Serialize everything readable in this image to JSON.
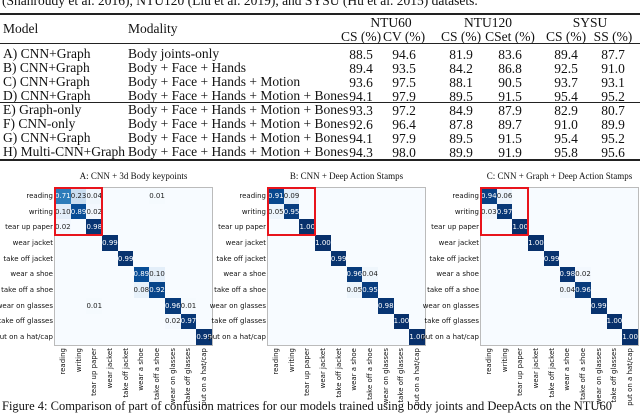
{
  "top_text": "(Shahroudy et al. 2016), NTU120 (Liu et al. 2019), and SYSU (Hu et al. 2015) datasets.",
  "table": {
    "headers": {
      "model": "Model",
      "modality": "Modality",
      "groups": [
        "NTU60",
        "NTU120",
        "SYSU"
      ],
      "subcols": [
        "CS (%)",
        "CV (%)",
        "CS (%)",
        "CSet (%)",
        "CS (%)",
        "SS (%)"
      ]
    },
    "rows": [
      {
        "model": "A) CNN+Graph",
        "modality": "Body joints-only",
        "values": [
          "88.5",
          "94.6",
          "81.9",
          "83.6",
          "89.4",
          "87.7"
        ]
      },
      {
        "model": "B) CNN+Graph",
        "modality": "Body + Face + Hands",
        "values": [
          "89.4",
          "93.5",
          "84.2",
          "86.8",
          "92.5",
          "91.0"
        ]
      },
      {
        "model": "C) CNN+Graph",
        "modality": "Body + Face + Hands + Motion",
        "values": [
          "93.6",
          "97.5",
          "88.1",
          "90.5",
          "93.7",
          "93.1"
        ]
      },
      {
        "model": "D) CNN+Graph",
        "modality": "Body + Face + Hands + Motion + Bones",
        "values": [
          "94.1",
          "97.9",
          "89.5",
          "91.5",
          "95.4",
          "95.2"
        ]
      },
      {
        "model": "E) Graph-only",
        "modality": "Body + Face + Hands + Motion + Bones",
        "values": [
          "93.3",
          "97.2",
          "84.9",
          "87.9",
          "82.9",
          "80.7"
        ]
      },
      {
        "model": "F) CNN-only",
        "modality": "Body + Face + Hands + Motion + Bones",
        "values": [
          "92.6",
          "96.4",
          "87.8",
          "89.7",
          "91.0",
          "89.9"
        ]
      },
      {
        "model": "G) CNN+Graph",
        "modality": "Body + Face + Hands + Motion + Bones",
        "values": [
          "94.1",
          "97.9",
          "89.5",
          "91.5",
          "95.4",
          "95.2"
        ]
      },
      {
        "model": "H) Multi-CNN+Graph",
        "modality": "Body + Face + Hands + Motion + Bones",
        "values": [
          "94.3",
          "98.0",
          "89.9",
          "91.9",
          "95.8",
          "95.6"
        ]
      }
    ]
  },
  "chart_data": [
    {
      "type": "heatmap",
      "title": "A: CNN + 3d Body keypoints",
      "colormap": "Blues",
      "highlight_color": "#e8141c",
      "highlight": "top-left 3x3",
      "labels": [
        "reading",
        "writing",
        "tear up paper",
        "wear jacket",
        "take off jacket",
        "wear a shoe",
        "take off a shoe",
        "wear on glasses",
        "take off glasses",
        "put on a hat/cap"
      ],
      "matrix": [
        [
          0.71,
          0.23,
          0.04,
          0,
          0,
          0,
          0.01,
          0,
          0,
          0
        ],
        [
          0.1,
          0.89,
          0.02,
          0,
          0,
          0,
          0,
          0,
          0,
          0
        ],
        [
          0.02,
          0,
          0.98,
          0,
          0,
          0,
          0,
          0,
          0,
          0
        ],
        [
          0,
          0,
          0,
          0.99,
          0,
          0,
          0,
          0,
          0,
          0
        ],
        [
          0,
          0,
          0,
          0,
          0.99,
          0,
          0,
          0,
          0,
          0
        ],
        [
          0,
          0,
          0,
          0,
          0,
          0.89,
          0.1,
          0,
          0,
          0
        ],
        [
          0,
          0,
          0,
          0,
          0,
          0.08,
          0.92,
          0,
          0,
          0
        ],
        [
          0,
          0,
          0.01,
          0,
          0,
          0,
          0,
          0.96,
          0.01,
          0
        ],
        [
          0,
          0,
          0,
          0,
          0,
          0,
          0,
          0.02,
          0.97,
          0
        ],
        [
          0,
          0,
          0,
          0,
          0,
          0,
          0,
          0,
          0,
          0.99
        ]
      ]
    },
    {
      "type": "heatmap",
      "title": "B: CNN + Deep Action Stamps",
      "colormap": "Blues",
      "highlight_color": "#e8141c",
      "highlight": "top-left 3x3",
      "labels": [
        "reading",
        "writing",
        "tear up paper",
        "wear jacket",
        "take off jacket",
        "wear a shoe",
        "take off a shoe",
        "wear on glasses",
        "take off glasses",
        "put on a hat/cap"
      ],
      "matrix": [
        [
          0.91,
          0.09,
          0,
          0,
          0,
          0,
          0,
          0,
          0,
          0
        ],
        [
          0.05,
          0.95,
          0,
          0,
          0,
          0,
          0,
          0,
          0,
          0
        ],
        [
          0,
          0,
          1.0,
          0,
          0,
          0,
          0,
          0,
          0,
          0
        ],
        [
          0,
          0,
          0,
          1.0,
          0,
          0,
          0,
          0,
          0,
          0
        ],
        [
          0,
          0,
          0,
          0,
          0.99,
          0,
          0,
          0,
          0,
          0
        ],
        [
          0,
          0,
          0,
          0,
          0,
          0.96,
          0.04,
          0,
          0,
          0
        ],
        [
          0,
          0,
          0,
          0,
          0,
          0.05,
          0.95,
          0,
          0,
          0
        ],
        [
          0,
          0,
          0,
          0,
          0,
          0,
          0,
          0.98,
          0,
          0
        ],
        [
          0,
          0,
          0,
          0,
          0,
          0,
          0,
          0,
          1.0,
          0
        ],
        [
          0,
          0,
          0,
          0,
          0,
          0,
          0,
          0,
          0,
          1.0
        ]
      ]
    },
    {
      "type": "heatmap",
      "title": "C: CNN + Graph + Deep Action Stamps",
      "colormap": "Blues",
      "highlight_color": "#e8141c",
      "highlight": "top-left 3x3",
      "labels": [
        "reading",
        "writing",
        "tear up paper",
        "wear jacket",
        "take off jacket",
        "wear a shoe",
        "take off a shoe",
        "wear on glasses",
        "take off glasses",
        "put on a hat/cap"
      ],
      "matrix": [
        [
          0.94,
          0.06,
          0,
          0,
          0,
          0,
          0,
          0,
          0,
          0
        ],
        [
          0.03,
          0.97,
          0,
          0,
          0,
          0,
          0,
          0,
          0,
          0
        ],
        [
          0,
          0,
          1.0,
          0,
          0,
          0,
          0,
          0,
          0,
          0
        ],
        [
          0,
          0,
          0,
          1.0,
          0,
          0,
          0,
          0,
          0,
          0
        ],
        [
          0,
          0,
          0,
          0,
          0.99,
          0,
          0,
          0,
          0,
          0
        ],
        [
          0,
          0,
          0,
          0,
          0,
          0.98,
          0.02,
          0,
          0,
          0
        ],
        [
          0,
          0,
          0,
          0,
          0,
          0.04,
          0.96,
          0,
          0,
          0
        ],
        [
          0,
          0,
          0,
          0,
          0,
          0,
          0,
          0.99,
          0,
          0
        ],
        [
          0,
          0,
          0,
          0,
          0,
          0,
          0,
          0,
          1.0,
          0
        ],
        [
          0,
          0,
          0,
          0,
          0,
          0,
          0,
          0,
          0,
          1.0
        ]
      ]
    }
  ],
  "caption": "Figure 4: Comparison of part of confusion matrices for our models trained using body joints and DeepActs on the NTU60"
}
